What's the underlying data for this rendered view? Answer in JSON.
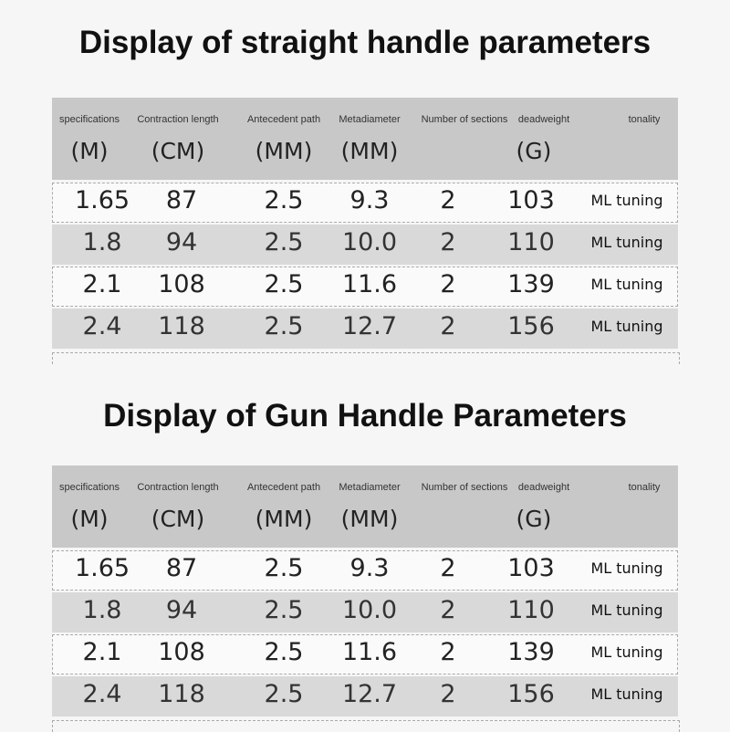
{
  "tables": [
    {
      "title": "Display of straight handle parameters",
      "headers": [
        {
          "label": "specifications",
          "unit": "(M)"
        },
        {
          "label": "Contraction length",
          "unit": "(CM)"
        },
        {
          "label": "Antecedent path",
          "unit": "(MM)"
        },
        {
          "label": "Metadiameter",
          "unit": "(MM)"
        },
        {
          "label": "Number of sections",
          "unit": ""
        },
        {
          "label": "deadweight",
          "unit": "(G)"
        },
        {
          "label": "tonality",
          "unit": ""
        }
      ],
      "rows": [
        [
          "1.65",
          "87",
          "2.5",
          "9.3",
          "2",
          "103",
          "ML tuning"
        ],
        [
          "1.8",
          "94",
          "2.5",
          "10.0",
          "2",
          "110",
          "ML tuning"
        ],
        [
          "2.1",
          "108",
          "2.5",
          "11.6",
          "2",
          "139",
          "ML tuning"
        ],
        [
          "2.4",
          "118",
          "2.5",
          "12.7",
          "2",
          "156",
          "ML tuning"
        ]
      ]
    },
    {
      "title": "Display of Gun Handle Parameters",
      "headers": [
        {
          "label": "specifications",
          "unit": "(M)"
        },
        {
          "label": "Contraction length",
          "unit": "(CM)"
        },
        {
          "label": "Antecedent path",
          "unit": "(MM)"
        },
        {
          "label": "Metadiameter",
          "unit": "(MM)"
        },
        {
          "label": "Number of sections",
          "unit": ""
        },
        {
          "label": "deadweight",
          "unit": "(G)"
        },
        {
          "label": "tonality",
          "unit": ""
        }
      ],
      "rows": [
        [
          "1.65",
          "87",
          "2.5",
          "9.3",
          "2",
          "103",
          "ML tuning"
        ],
        [
          "1.8",
          "94",
          "2.5",
          "10.0",
          "2",
          "110",
          "ML tuning"
        ],
        [
          "2.1",
          "108",
          "2.5",
          "11.6",
          "2",
          "139",
          "ML tuning"
        ],
        [
          "2.4",
          "118",
          "2.5",
          "12.7",
          "2",
          "156",
          "ML tuning"
        ]
      ]
    }
  ]
}
